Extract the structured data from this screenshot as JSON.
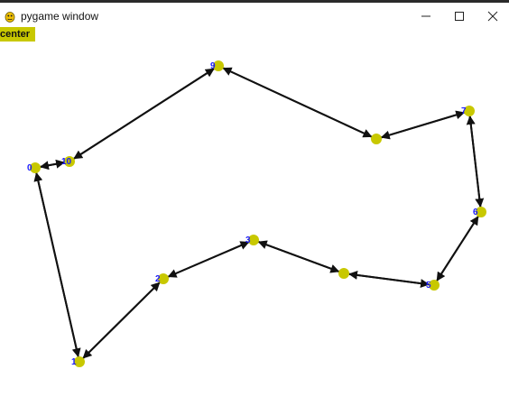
{
  "window": {
    "title": "pygame window",
    "icon": "pygame-snake-icon",
    "controls": [
      "minimize",
      "maximize",
      "close"
    ]
  },
  "toolbar": {
    "center_label": "center"
  },
  "colors": {
    "node": "#c8c800",
    "edge": "#111111",
    "label": "#1a1aff",
    "button": "#c8c800"
  },
  "graph": {
    "nodes": [
      {
        "id": "0",
        "label": "0"
      },
      {
        "id": "10",
        "label": "10"
      },
      {
        "id": "9",
        "label": "9"
      },
      {
        "id": "8",
        "label": ""
      },
      {
        "id": "7",
        "label": "7"
      },
      {
        "id": "6",
        "label": "6"
      },
      {
        "id": "5",
        "label": "5"
      },
      {
        "id": "4",
        "label": ""
      },
      {
        "id": "3",
        "label": "3"
      },
      {
        "id": "2",
        "label": "2"
      },
      {
        "id": "1",
        "label": "1"
      }
    ],
    "edges": [
      [
        "0",
        "10"
      ],
      [
        "10",
        "9"
      ],
      [
        "9",
        "8"
      ],
      [
        "8",
        "7"
      ],
      [
        "7",
        "6"
      ],
      [
        "6",
        "5"
      ],
      [
        "5",
        "4"
      ],
      [
        "4",
        "3"
      ],
      [
        "3",
        "2"
      ],
      [
        "2",
        "1"
      ],
      [
        "1",
        "0"
      ]
    ]
  }
}
